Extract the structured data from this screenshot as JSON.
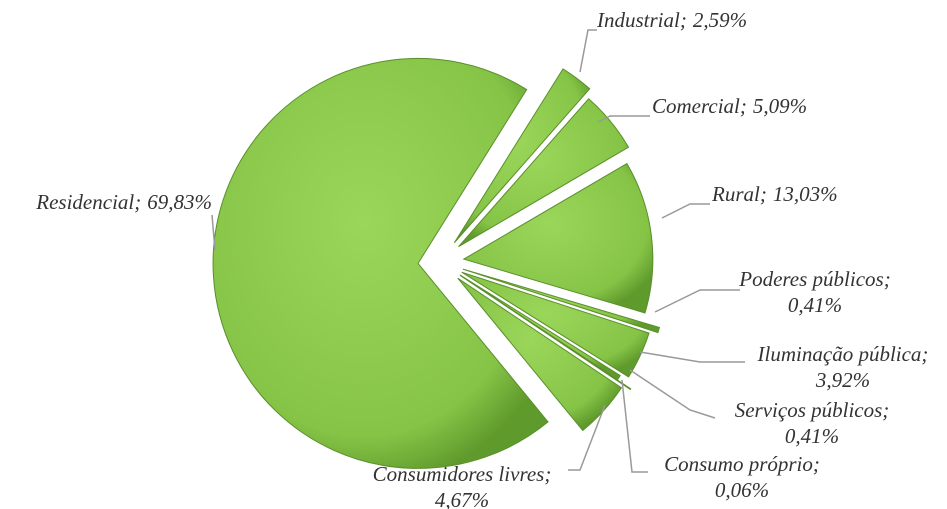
{
  "chart_data": {
    "type": "pie",
    "categories": [
      "Industrial;",
      "Comercial;",
      "Rural;",
      "Poderes públicos;",
      "Iluminação pública;",
      "Serviços públicos;",
      "Consumo próprio;",
      "Consumidores livres;",
      "Residencial;"
    ],
    "values": [
      2.59,
      5.09,
      13.03,
      0.41,
      3.92,
      0.41,
      0.06,
      4.67,
      69.83
    ],
    "value_labels": [
      "2,59%",
      "5,09%",
      "13,03%",
      "0,41%",
      "3,92%",
      "0,41%",
      "0,06%",
      "4,67%",
      "69,83%"
    ],
    "color": "#8cc84b"
  }
}
